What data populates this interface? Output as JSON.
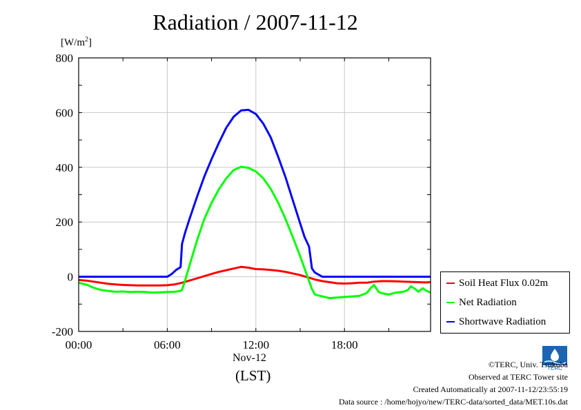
{
  "chart_data": {
    "type": "line",
    "title": "Radiation / 2007-11-12",
    "ylabel_unit": "[W/m",
    "ylabel_unit_sup": "2",
    "ylabel_unit_close": "]",
    "xlabel": "(LST)",
    "x_date_label": "Nov-12",
    "xlim_hours": [
      0,
      23.83
    ],
    "ylim": [
      -200,
      800
    ],
    "y_ticks": [
      -200,
      0,
      200,
      400,
      600,
      800
    ],
    "y_tick_labels": [
      "-200",
      "0",
      "200",
      "400",
      "600",
      "800"
    ],
    "x_ticks_hours": [
      0,
      6,
      12,
      18
    ],
    "x_tick_labels": [
      "00:00",
      "06:00",
      "12:00",
      "18:00"
    ],
    "grid": true,
    "legend_position": "bottom-right-outside",
    "series": [
      {
        "name": "Soil Heat Flux 0.02m",
        "color": "#ff0000",
        "x": [
          0,
          0.5,
          1,
          1.5,
          2,
          2.5,
          3,
          3.5,
          4,
          4.5,
          5,
          5.5,
          6,
          6.5,
          7,
          7.5,
          8,
          8.5,
          9,
          9.5,
          10,
          10.5,
          11,
          11.5,
          12,
          12.5,
          13,
          13.5,
          14,
          14.5,
          15,
          15.5,
          16,
          16.5,
          17,
          17.5,
          18,
          18.5,
          19,
          19.5,
          20,
          20.5,
          21,
          21.5,
          22,
          22.5,
          23,
          23.5,
          23.83
        ],
        "y": [
          -12,
          -14,
          -18,
          -22,
          -26,
          -28,
          -30,
          -31,
          -32,
          -32,
          -32,
          -32,
          -31,
          -28,
          -22,
          -14,
          -6,
          2,
          10,
          18,
          24,
          30,
          36,
          33,
          28,
          27,
          25,
          22,
          18,
          12,
          6,
          -2,
          -10,
          -16,
          -20,
          -24,
          -25,
          -24,
          -22,
          -22,
          -18,
          -16,
          -16,
          -17,
          -18,
          -19,
          -20,
          -21,
          -20
        ]
      },
      {
        "name": "Net Radiation",
        "color": "#00ff00",
        "x": [
          0,
          0.3,
          0.6,
          1,
          1.5,
          2,
          2.5,
          3,
          3.5,
          4,
          4.5,
          5,
          5.5,
          6,
          6.5,
          6.9,
          7,
          7.2,
          7.5,
          8,
          8.5,
          9,
          9.5,
          10,
          10.5,
          11,
          11.5,
          12,
          12.5,
          13,
          13.5,
          14,
          14.5,
          15,
          15.5,
          15.8,
          16,
          16.5,
          17,
          17.5,
          18,
          18.5,
          19,
          19.5,
          19.8,
          20,
          20.3,
          20.5,
          21,
          21.5,
          22,
          22.3,
          22.5,
          22.8,
          23,
          23.3,
          23.5,
          23.83
        ],
        "y": [
          -22,
          -26,
          -30,
          -40,
          -48,
          -52,
          -55,
          -54,
          -56,
          -55,
          -56,
          -58,
          -57,
          -56,
          -55,
          -52,
          -48,
          -15,
          40,
          130,
          210,
          270,
          320,
          360,
          390,
          402,
          398,
          385,
          360,
          322,
          272,
          212,
          145,
          75,
          0,
          -45,
          -65,
          -72,
          -78,
          -76,
          -74,
          -72,
          -70,
          -60,
          -40,
          -30,
          -55,
          -60,
          -65,
          -58,
          -55,
          -48,
          -35,
          -45,
          -55,
          -42,
          -50,
          -58
        ]
      },
      {
        "name": "Shortwave Radiation",
        "color": "#0000ff",
        "x": [
          0,
          0.5,
          1,
          1.5,
          2,
          2.5,
          3,
          3.5,
          4,
          4.5,
          5,
          5.5,
          6,
          6.3,
          6.6,
          6.9,
          7,
          7.2,
          7.5,
          8,
          8.5,
          9,
          9.5,
          10,
          10.5,
          11,
          11.5,
          12,
          12.5,
          13,
          13.5,
          14,
          14.5,
          15,
          15.3,
          15.6,
          15.8,
          16,
          16.5,
          17,
          17.5,
          18,
          18.5,
          19,
          19.5,
          20,
          20.5,
          21,
          21.5,
          22,
          22.5,
          23,
          23.5,
          23.83
        ],
        "y": [
          0,
          0,
          0,
          0,
          0,
          0,
          0,
          0,
          0,
          0,
          0,
          0,
          0,
          10,
          25,
          35,
          120,
          160,
          210,
          290,
          365,
          430,
          490,
          545,
          585,
          608,
          610,
          595,
          560,
          510,
          440,
          365,
          280,
          195,
          145,
          110,
          30,
          15,
          0,
          0,
          0,
          0,
          0,
          0,
          0,
          0,
          0,
          0,
          0,
          0,
          0,
          0,
          0,
          0
        ]
      }
    ]
  },
  "legend": {
    "items": [
      {
        "label": "Soil Heat Flux 0.02m",
        "color": "#ff0000"
      },
      {
        "label": "Net Radiation",
        "color": "#00ff00"
      },
      {
        "label": "Shortwave Radiation",
        "color": "#0000ff"
      }
    ]
  },
  "footer": {
    "copyright": "©TERC, Univ. Tsukuba",
    "observed": "Observed at TERC Tower site",
    "created": "Created Automatically at 2007-11-12/23:55:19",
    "source": "Data source : /home/hojyo/new/TERC-data/sorted_data/MET.10s.dat",
    "logo_text": "TERC",
    "logo_color": "#1a66b3"
  }
}
